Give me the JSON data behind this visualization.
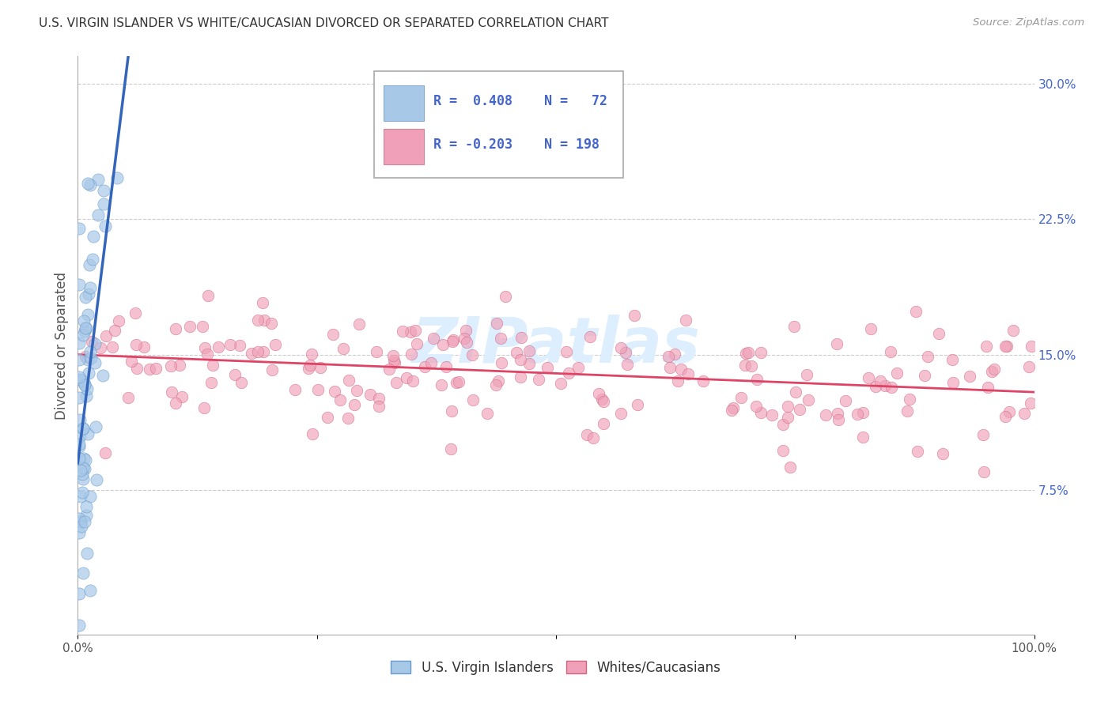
{
  "title": "U.S. VIRGIN ISLANDER VS WHITE/CAUCASIAN DIVORCED OR SEPARATED CORRELATION CHART",
  "source": "Source: ZipAtlas.com",
  "ylabel": "Divorced or Separated",
  "blue_R": 0.408,
  "blue_N": 72,
  "pink_R": -0.203,
  "pink_N": 198,
  "legend_label_blue": "U.S. Virgin Islanders",
  "legend_label_pink": "Whites/Caucasians",
  "blue_scatter_color": "#a8c8e8",
  "blue_line_color": "#3366bb",
  "blue_edge_color": "#6699cc",
  "pink_scatter_color": "#f0a0b8",
  "pink_line_color": "#dd4466",
  "pink_edge_color": "#cc6680",
  "watermark_color": "#ddeeff",
  "title_color": "#333333",
  "source_color": "#999999",
  "axis_tick_color": "#4466cc",
  "legend_text_color": "#4466cc",
  "grid_color": "#cccccc",
  "xmin": 0.0,
  "xmax": 1.0,
  "ymin": -0.005,
  "ymax": 0.315,
  "yticks": [
    0.075,
    0.15,
    0.225,
    0.3
  ],
  "xtick_positions": [
    0.0,
    0.25,
    0.5,
    0.75,
    1.0
  ],
  "blue_seed": 12345,
  "pink_seed": 67890
}
